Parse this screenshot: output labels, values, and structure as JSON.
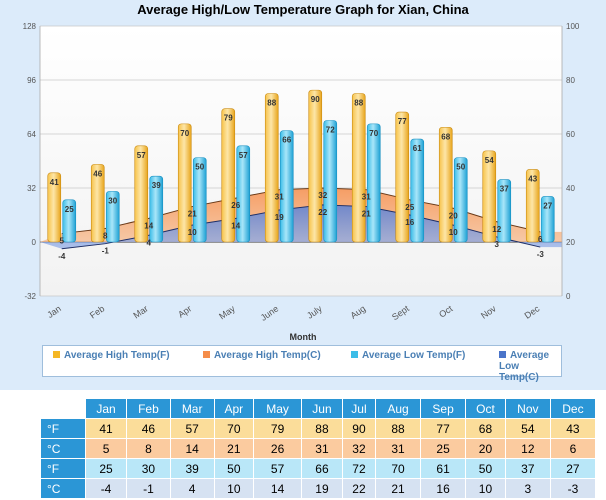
{
  "chart_data": {
    "type": "bar",
    "title": "Average High/Low Temperature Graph for Xian, China",
    "xlabel": "Month",
    "categories": [
      "Jan",
      "Feb",
      "Mar",
      "Apr",
      "May",
      "June",
      "July",
      "Aug",
      "Sept",
      "Oct",
      "Nov",
      "Dec"
    ],
    "left_axis": {
      "ticks": [
        128,
        96,
        64,
        32,
        0,
        -32
      ],
      "ylim": [
        -32,
        128
      ]
    },
    "right_axis": {
      "ticks": [
        100,
        80,
        60,
        40,
        20,
        0
      ],
      "ylim": [
        0,
        100
      ]
    },
    "series": [
      {
        "name": "Average High Temp(F)",
        "type": "bar",
        "color": "#f5b724",
        "values": [
          41,
          46,
          57,
          70,
          79,
          88,
          90,
          88,
          77,
          68,
          54,
          43
        ]
      },
      {
        "name": "Average High Temp(C)",
        "type": "area",
        "color": "#f58d4a",
        "values": [
          5,
          8,
          14,
          21,
          26,
          31,
          32,
          31,
          25,
          20,
          12,
          6
        ]
      },
      {
        "name": "Average Low Temp(F)",
        "type": "bar",
        "color": "#3cbde8",
        "values": [
          25,
          30,
          39,
          50,
          57,
          66,
          72,
          70,
          61,
          50,
          37,
          27
        ]
      },
      {
        "name": "Average Low Temp(C)",
        "type": "area",
        "color": "#4a74c9",
        "values": [
          -4,
          -1,
          4,
          10,
          14,
          19,
          22,
          21,
          16,
          10,
          3,
          -3
        ]
      }
    ],
    "legend_position": "bottom",
    "grid": true
  },
  "table": {
    "headers": [
      "Jan",
      "Feb",
      "Mar",
      "Apr",
      "May",
      "Jun",
      "Jul",
      "Aug",
      "Sep",
      "Oct",
      "Nov",
      "Dec"
    ],
    "rows": [
      {
        "label": "°F",
        "values": [
          "41",
          "46",
          "57",
          "70",
          "79",
          "88",
          "90",
          "88",
          "77",
          "68",
          "54",
          "43"
        ]
      },
      {
        "label": "°C",
        "values": [
          "5",
          "8",
          "14",
          "21",
          "26",
          "31",
          "32",
          "31",
          "25",
          "20",
          "12",
          "6"
        ]
      },
      {
        "label": "°F",
        "values": [
          "25",
          "30",
          "39",
          "50",
          "57",
          "66",
          "72",
          "70",
          "61",
          "50",
          "37",
          "27"
        ]
      },
      {
        "label": "°C",
        "values": [
          "-4",
          "-1",
          "4",
          "10",
          "14",
          "19",
          "22",
          "21",
          "16",
          "10",
          "3",
          "-3"
        ]
      }
    ]
  }
}
